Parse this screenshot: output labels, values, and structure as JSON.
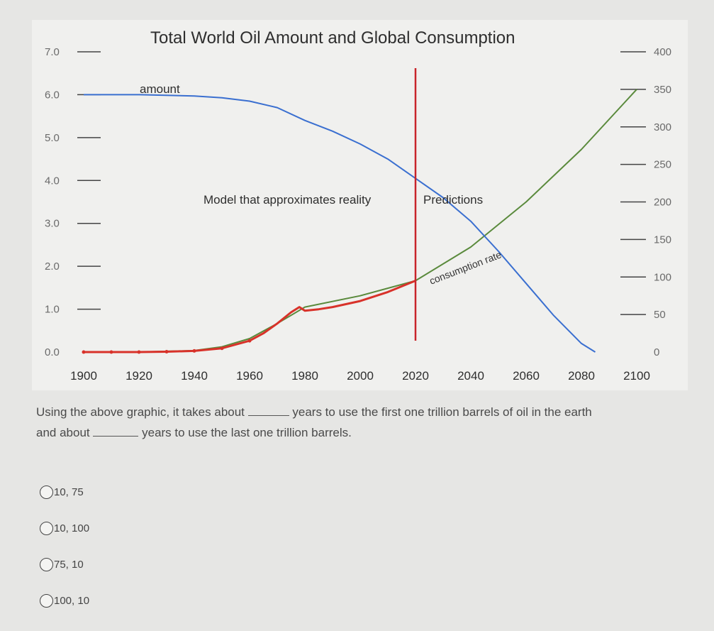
{
  "chart_data": {
    "type": "line",
    "title": "Total World Oil Amount and Global Consumption",
    "x_ticks": [
      "1900",
      "1920",
      "1940",
      "1960",
      "1980",
      "2000",
      "2020",
      "2040",
      "2060",
      "2080",
      "2100"
    ],
    "xlim": [
      1900,
      2100
    ],
    "y_left_ticks": [
      "7.0",
      "6.0",
      "5.0",
      "4.0",
      "3.0",
      "2.0",
      "1.0",
      "0.0"
    ],
    "ylim_left": [
      0,
      7
    ],
    "y_right_ticks": [
      "400",
      "350",
      "300",
      "250",
      "200",
      "150",
      "100",
      "50",
      "0"
    ],
    "ylim_right": [
      0,
      400
    ],
    "divider_year": 2020,
    "annotations": {
      "model": "Model that approximates reality",
      "predictions": "Predictions"
    },
    "colors": {
      "amount": "#3a6fd0",
      "observed": "#d8322a",
      "predicted": "#5a8a3c",
      "divider": "#c8242a"
    },
    "series": [
      {
        "name": "amount",
        "axis": "left",
        "x": [
          1900,
          1920,
          1940,
          1950,
          1960,
          1970,
          1980,
          1990,
          2000,
          2010,
          2020,
          2030,
          2040,
          2050,
          2060,
          2070,
          2080,
          2085
        ],
        "y": [
          6.0,
          6.0,
          5.97,
          5.93,
          5.85,
          5.7,
          5.4,
          5.15,
          4.85,
          4.5,
          4.05,
          3.6,
          3.05,
          2.35,
          1.6,
          0.85,
          0.2,
          0.0
        ]
      },
      {
        "name": "consumption rate",
        "axis": "right",
        "x": [
          1900,
          1910,
          1920,
          1930,
          1940,
          1950,
          1960,
          1965,
          1970,
          1975,
          1978,
          1980,
          1985,
          1990,
          2000,
          2010,
          2020
        ],
        "y": [
          0,
          0,
          0,
          0.5,
          1.5,
          5,
          15,
          25,
          38,
          53,
          60,
          55,
          57,
          60,
          68,
          80,
          95
        ]
      },
      {
        "name": "consumption rate (predicted)",
        "axis": "right",
        "x": [
          1900,
          1920,
          1940,
          1950,
          1960,
          1970,
          1980,
          2000,
          2020,
          2040,
          2060,
          2080,
          2100
        ],
        "y": [
          0,
          0,
          2,
          7,
          18,
          38,
          60,
          75,
          95,
          140,
          200,
          270,
          350
        ]
      }
    ]
  },
  "question": {
    "part1": "Using the above graphic, it takes about",
    "part2": "years to use the first one trillion barrels of oil in the earth",
    "part3": "and about",
    "part4": "years to use the last one trillion barrels."
  },
  "options": [
    {
      "label": "10, 75"
    },
    {
      "label": "10, 100"
    },
    {
      "label": "75, 10"
    },
    {
      "label": "100, 10"
    }
  ]
}
